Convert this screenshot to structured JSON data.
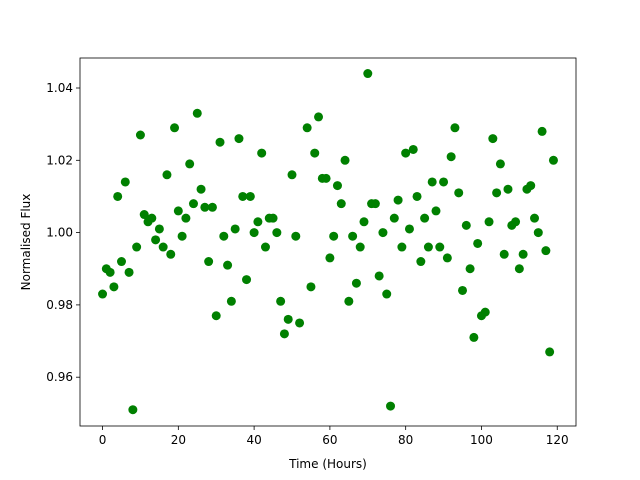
{
  "chart_data": {
    "type": "scatter",
    "x_label": "Time (Hours)",
    "y_label": "Normalised Flux",
    "color": "#008000",
    "x": [
      0,
      1,
      2,
      3,
      4,
      5,
      6,
      7,
      8,
      9,
      10,
      11,
      12,
      13,
      14,
      15,
      16,
      17,
      18,
      19,
      20,
      21,
      22,
      23,
      24,
      25,
      26,
      27,
      28,
      29,
      30,
      31,
      32,
      33,
      34,
      35,
      36,
      37,
      38,
      39,
      40,
      41,
      42,
      43,
      44,
      45,
      46,
      47,
      48,
      49,
      50,
      51,
      52,
      54,
      55,
      56,
      57,
      58,
      59,
      60,
      61,
      62,
      63,
      64,
      65,
      66,
      67,
      68,
      69,
      70,
      71,
      72,
      73,
      74,
      75,
      76,
      77,
      78,
      79,
      80,
      81,
      82,
      83,
      84,
      85,
      86,
      87,
      88,
      89,
      90,
      91,
      92,
      93,
      94,
      95,
      96,
      97,
      98,
      99,
      100,
      101,
      102,
      103,
      104,
      105,
      106,
      107,
      108,
      109,
      110,
      111,
      112,
      113,
      114,
      115,
      116,
      117,
      118,
      119
    ],
    "values": [
      0.983,
      0.99,
      0.989,
      0.985,
      1.01,
      0.992,
      1.014,
      0.989,
      0.951,
      0.996,
      1.027,
      1.005,
      1.003,
      1.004,
      0.998,
      1.001,
      0.996,
      1.016,
      0.994,
      1.029,
      1.006,
      0.999,
      1.004,
      1.019,
      1.008,
      1.033,
      1.012,
      1.007,
      0.992,
      1.007,
      0.977,
      1.025,
      0.999,
      0.991,
      0.981,
      1.001,
      1.026,
      1.01,
      0.987,
      1.01,
      1.0,
      1.003,
      1.022,
      0.996,
      1.004,
      1.004,
      1.0,
      0.981,
      0.972,
      0.976,
      1.016,
      0.999,
      0.975,
      1.029,
      0.985,
      1.022,
      1.032,
      1.015,
      1.015,
      0.993,
      0.999,
      1.013,
      1.008,
      1.02,
      0.981,
      0.999,
      0.986,
      0.996,
      1.003,
      1.044,
      1.008,
      1.008,
      0.988,
      1.0,
      0.983,
      0.952,
      1.004,
      1.009,
      0.996,
      1.022,
      1.001,
      1.023,
      1.01,
      0.992,
      1.004,
      0.996,
      1.014,
      1.006,
      0.996,
      1.014,
      0.993,
      1.021,
      1.029,
      1.011,
      0.984,
      1.002,
      0.99,
      0.971,
      0.997,
      0.977,
      0.978,
      1.003,
      1.026,
      1.011,
      1.019,
      0.994,
      1.012,
      1.002,
      1.003,
      0.99,
      0.994,
      1.012,
      1.013,
      1.004,
      1.0,
      1.028,
      0.995,
      0.967,
      1.02
    ],
    "xlim": [
      -5.95,
      124.95
    ],
    "xticks": [
      0,
      20,
      40,
      60,
      80,
      100,
      120
    ],
    "ylim": [
      0.9465,
      1.0483
    ],
    "yticks": [
      0.96,
      0.98,
      {
        "value": 1.0,
        "label": "1.00"
      },
      1.02,
      1.04
    ]
  }
}
